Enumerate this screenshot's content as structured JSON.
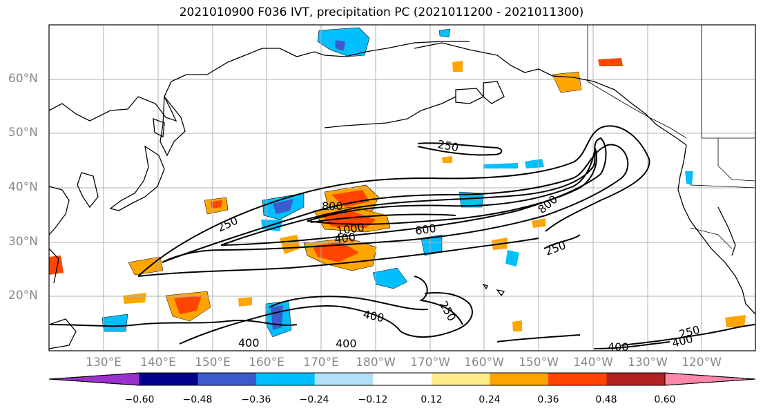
{
  "title": "2021010900 F036 IVT, precipitation PC (2021011200 - 2021011300)",
  "axes": {
    "lat_labels": [
      "60°N",
      "50°N",
      "40°N",
      "30°N",
      "20°N"
    ],
    "lon_labels": [
      "130°E",
      "140°E",
      "150°E",
      "160°E",
      "170°E",
      "180°W",
      "170°W",
      "160°W",
      "150°W",
      "140°W",
      "130°W",
      "120°W"
    ]
  },
  "ivt_contour_labels": [
    "250",
    "250",
    "250",
    "250",
    "250",
    "800",
    "800",
    "1000",
    "600",
    "400",
    "400",
    "400",
    "400",
    "400",
    "400"
  ],
  "colorbar": {
    "colors": [
      "#9932cc",
      "#00008b",
      "#3a5bcd",
      "#00bfff",
      "#b0e0fa",
      "#ffffff",
      "#ffec8b",
      "#ffa500",
      "#ff4500",
      "#b22222",
      "#ff88aa"
    ],
    "ticks": [
      "−0.60",
      "−0.48",
      "−0.36",
      "−0.24",
      "−0.12",
      "0.12",
      "0.24",
      "0.36",
      "0.48",
      "0.60"
    ]
  }
}
